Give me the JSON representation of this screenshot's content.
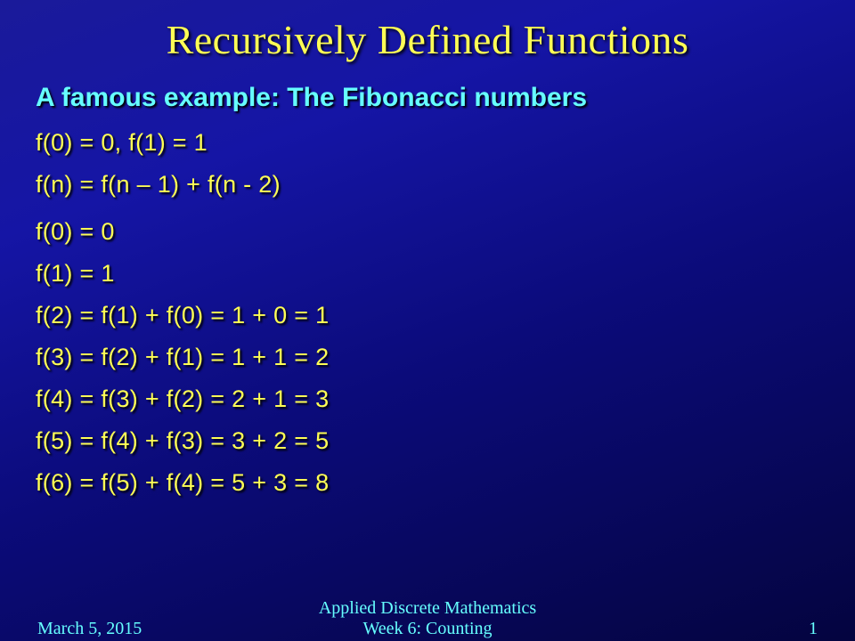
{
  "colors": {
    "title": "#ffff55",
    "subtitle": "#66ffff",
    "body": "#ffff55",
    "footer": "#66ffff",
    "bg_top": "#1a1a9a",
    "bg_bottom": "#04043f"
  },
  "title": "Recursively Defined Functions",
  "subtitle": "A famous example: The Fibonacci numbers",
  "defs": {
    "base": "f(0) = 0, f(1) = 1",
    "rec": "f(n) = f(n – 1) + f(n - 2)"
  },
  "expansions": [
    "f(0) = 0",
    "f(1) = 1",
    "f(2) = f(1) + f(0) = 1 + 0 = 1",
    "f(3) = f(2) + f(1) = 1 + 1 = 2",
    "f(4) = f(3) + f(2) = 2 + 1 = 3",
    "f(5) = f(4) + f(3) = 3 + 2 = 5",
    "f(6) = f(5) + f(4) = 5 + 3 = 8"
  ],
  "footer": {
    "date": "March 5, 2015",
    "course_line1": "Applied Discrete Mathematics",
    "course_line2": "Week 6: Counting",
    "page": "1"
  }
}
